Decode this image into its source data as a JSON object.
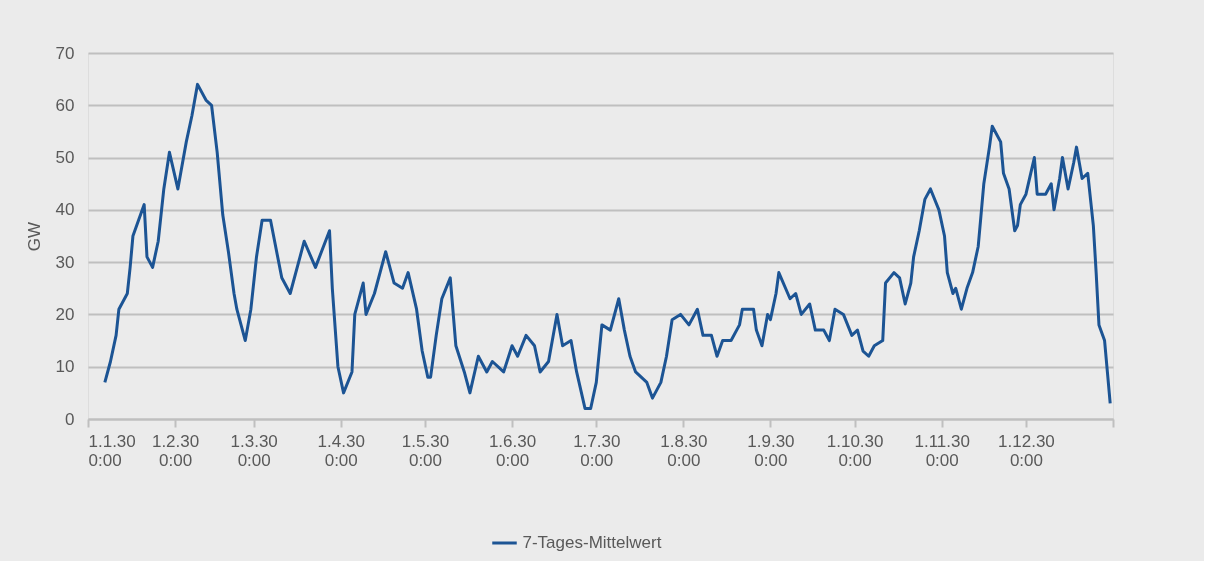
{
  "chart_data": {
    "type": "line",
    "ylabel": "GW",
    "legend": "bottom",
    "grid": "y",
    "marker": "none",
    "line_style": "solid",
    "xlim": [
      "2030-01-01",
      "2031-01-01"
    ],
    "ylim": [
      0,
      70
    ],
    "yticks": [
      0,
      10,
      20,
      30,
      40,
      50,
      60,
      70
    ],
    "xticks": [
      {
        "value": "2030-01-01",
        "label": "1.1.30 0:00"
      },
      {
        "value": "2030-02-01",
        "label": "1.2.30 0:00"
      },
      {
        "value": "2030-03-01",
        "label": "1.3.30 0:00"
      },
      {
        "value": "2030-04-01",
        "label": "1.4.30 0:00"
      },
      {
        "value": "2030-05-01",
        "label": "1.5.30 0:00"
      },
      {
        "value": "2030-06-01",
        "label": "1.6.30 0:00"
      },
      {
        "value": "2030-07-01",
        "label": "1.7.30 0:00"
      },
      {
        "value": "2030-08-01",
        "label": "1.8.30 0:00"
      },
      {
        "value": "2030-09-01",
        "label": "1.9.30 0:00"
      },
      {
        "value": "2030-10-01",
        "label": "1.10.30 0:00"
      },
      {
        "value": "2030-11-01",
        "label": "1.11.30 0:00"
      },
      {
        "value": "2030-12-01",
        "label": "1.12.30 0:00"
      },
      {
        "value": "2031-01-01",
        "label": null
      }
    ],
    "x": [
      "2030-01-07",
      "2030-01-09",
      "2030-01-11",
      "2030-01-12",
      "2030-01-15",
      "2030-01-16",
      "2030-01-17",
      "2030-01-19",
      "2030-01-21",
      "2030-01-22",
      "2030-01-24",
      "2030-01-26",
      "2030-01-28",
      "2030-01-30",
      "2030-02-02",
      "2030-02-03",
      "2030-02-05",
      "2030-02-07",
      "2030-02-09",
      "2030-02-12",
      "2030-02-14",
      "2030-02-16",
      "2030-02-18",
      "2030-02-20",
      "2030-02-22",
      "2030-02-23",
      "2030-02-26",
      "2030-02-28",
      "2030-03-02",
      "2030-03-04",
      "2030-03-07",
      "2030-03-11",
      "2030-03-14",
      "2030-03-19",
      "2030-03-23",
      "2030-03-28",
      "2030-03-29",
      "2030-03-31",
      "2030-04-02",
      "2030-04-05",
      "2030-04-06",
      "2030-04-09",
      "2030-04-10",
      "2030-04-13",
      "2030-04-17",
      "2030-04-20",
      "2030-04-23",
      "2030-04-25",
      "2030-04-28",
      "2030-04-30",
      "2030-05-02",
      "2030-05-03",
      "2030-05-05",
      "2030-05-07",
      "2030-05-10",
      "2030-05-12",
      "2030-05-15",
      "2030-05-17",
      "2030-05-20",
      "2030-05-23",
      "2030-05-25",
      "2030-05-29",
      "2030-06-01",
      "2030-06-03",
      "2030-06-06",
      "2030-06-09",
      "2030-06-11",
      "2030-06-14",
      "2030-06-17",
      "2030-06-19",
      "2030-06-22",
      "2030-06-24",
      "2030-06-27",
      "2030-06-29",
      "2030-07-01",
      "2030-07-03",
      "2030-07-06",
      "2030-07-09",
      "2030-07-11",
      "2030-07-13",
      "2030-07-15",
      "2030-07-19",
      "2030-07-21",
      "2030-07-24",
      "2030-07-26",
      "2030-07-28",
      "2030-07-31",
      "2030-08-03",
      "2030-08-06",
      "2030-08-08",
      "2030-08-11",
      "2030-08-13",
      "2030-08-15",
      "2030-08-18",
      "2030-08-21",
      "2030-08-22",
      "2030-08-26",
      "2030-08-27",
      "2030-08-29",
      "2030-08-31",
      "2030-09-01",
      "2030-09-03",
      "2030-09-04",
      "2030-09-08",
      "2030-09-10",
      "2030-09-12",
      "2030-09-15",
      "2030-09-17",
      "2030-09-20",
      "2030-09-22",
      "2030-09-24",
      "2030-09-27",
      "2030-09-30",
      "2030-10-02",
      "2030-10-04",
      "2030-10-06",
      "2030-10-08",
      "2030-10-11",
      "2030-10-12",
      "2030-10-15",
      "2030-10-17",
      "2030-10-19",
      "2030-10-21",
      "2030-10-22",
      "2030-10-24",
      "2030-10-26",
      "2030-10-28",
      "2030-10-31",
      "2030-11-02",
      "2030-11-03",
      "2030-11-05",
      "2030-11-06",
      "2030-11-08",
      "2030-11-10",
      "2030-11-12",
      "2030-11-14",
      "2030-11-15",
      "2030-11-16",
      "2030-11-18",
      "2030-11-19",
      "2030-11-22",
      "2030-11-23",
      "2030-11-25",
      "2030-11-27",
      "2030-11-28",
      "2030-11-29",
      "2030-12-01",
      "2030-12-04",
      "2030-12-05",
      "2030-12-08",
      "2030-12-10",
      "2030-12-11",
      "2030-12-13",
      "2030-12-14",
      "2030-12-16",
      "2030-12-18",
      "2030-12-19",
      "2030-12-21",
      "2030-12-23",
      "2030-12-25",
      "2030-12-26",
      "2030-12-27",
      "2030-12-29",
      "2030-12-30",
      "2030-12-31"
    ],
    "series": [
      {
        "name": "7-Tages-Mittelwert",
        "color": "#1c5494",
        "values": [
          7,
          11,
          16,
          21,
          24,
          29,
          35,
          38,
          41,
          31,
          29,
          34,
          44,
          51,
          44,
          47,
          53,
          58,
          64,
          61,
          60,
          51,
          39,
          32,
          24,
          21,
          15,
          21,
          31,
          38,
          38,
          27,
          24,
          34,
          29,
          36,
          25,
          10,
          5,
          9,
          20,
          26,
          20,
          24,
          32,
          26,
          25,
          28,
          21,
          13,
          8,
          8,
          16,
          23,
          27,
          14,
          9,
          5,
          12,
          9,
          11,
          9,
          14,
          12,
          16,
          14,
          9,
          11,
          20,
          14,
          15,
          9,
          2,
          2,
          7,
          18,
          17,
          23,
          17,
          12,
          9,
          7,
          4,
          7,
          12,
          19,
          20,
          18,
          21,
          16,
          16,
          12,
          15,
          15,
          18,
          21,
          21,
          17,
          14,
          20,
          19,
          24,
          28,
          23,
          24,
          20,
          22,
          17,
          17,
          15,
          21,
          20,
          16,
          17,
          13,
          12,
          14,
          15,
          26,
          28,
          27,
          22,
          26,
          31,
          36,
          42,
          44,
          40,
          35,
          28,
          24,
          25,
          21,
          25,
          28,
          33,
          39,
          45,
          52,
          56,
          53,
          47,
          44,
          36,
          37,
          41,
          43,
          50,
          43,
          43,
          45,
          40,
          46,
          50,
          44,
          49,
          52,
          46,
          47,
          37,
          28,
          18,
          15,
          9,
          3
        ]
      }
    ]
  }
}
